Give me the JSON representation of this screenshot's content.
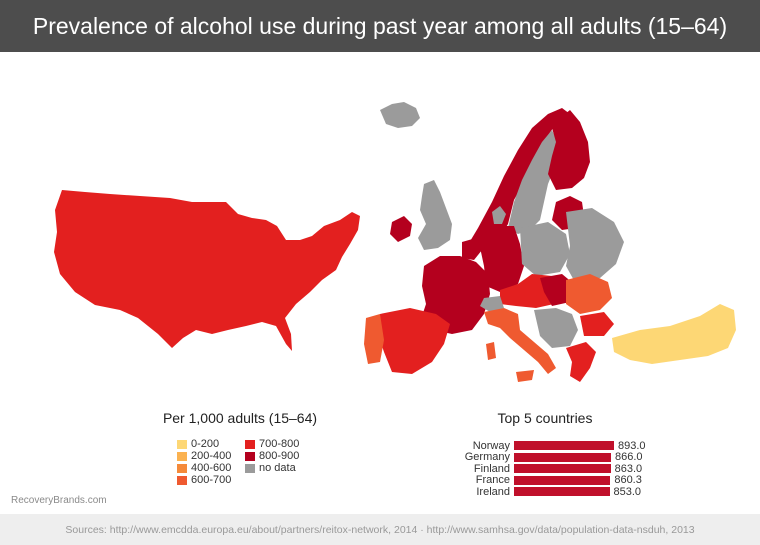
{
  "title": "Prevalence of alcohol use during past year among all adults (15–64)",
  "legend": {
    "title": "Per 1,000 adults (15–64)",
    "items": [
      {
        "label": "0-200",
        "color": "#fdd775"
      },
      {
        "label": "200-400",
        "color": "#fbb250"
      },
      {
        "label": "400-600",
        "color": "#f58a3a"
      },
      {
        "label": "600-700",
        "color": "#ef5a30"
      },
      {
        "label": "700-800",
        "color": "#e3201f"
      },
      {
        "label": "800-900",
        "color": "#b4001e"
      },
      {
        "label": "no data",
        "color": "#9b9b9b"
      }
    ]
  },
  "chart_data": {
    "type": "bar",
    "title": "Top 5 countries",
    "categories": [
      "Norway",
      "Germany",
      "Finland",
      "France",
      "Ireland"
    ],
    "values": [
      893.0,
      866.0,
      863.0,
      860.3,
      853.0
    ],
    "value_labels": [
      "893.0",
      "866.0",
      "863.0",
      "860.3",
      "853.0"
    ],
    "bar_color": "#c0102b",
    "xlim": [
      0,
      893.0
    ]
  },
  "watermark": "RecoveryBrands.com",
  "footer": "Sources: http://www.emcdda.europa.eu/about/partners/reitox-network, 2014  ·  http://www.samhsa.gov/data/population-data-nsduh, 2013"
}
